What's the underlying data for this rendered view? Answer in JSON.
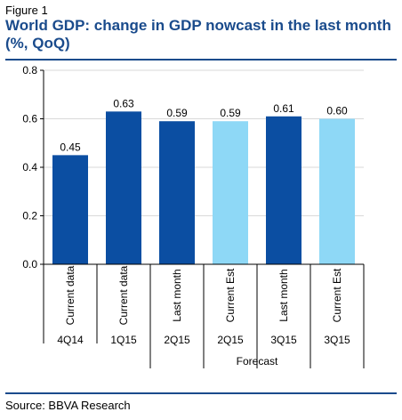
{
  "figure_label": "Figure 1",
  "title": "World GDP: change in GDP nowcast in the last month (%, QoQ)",
  "source": "Source: BBVA Research",
  "colors": {
    "dark": "#0b4ea2",
    "light": "#8ed8f6",
    "title": "#1a4b8c",
    "axis": "#000000",
    "grid": "#d9d9d9"
  },
  "chart_data": {
    "type": "bar",
    "categories": [
      "Current data",
      "Current data",
      "Last month",
      "Current Est",
      "Last month",
      "Current Est"
    ],
    "quarters": [
      "4Q14",
      "1Q15",
      "2Q15",
      "2Q15",
      "3Q15",
      "3Q15"
    ],
    "values": [
      0.45,
      0.63,
      0.59,
      0.59,
      0.61,
      0.6
    ],
    "value_labels": [
      "0.45",
      "0.63",
      "0.59",
      "0.59",
      "0.61",
      "0.60"
    ],
    "bar_colors": [
      "dark",
      "dark",
      "dark",
      "light",
      "dark",
      "light"
    ],
    "ylim": [
      0,
      0.8
    ],
    "yticks": [
      0.0,
      0.2,
      0.4,
      0.6,
      0.8
    ],
    "ytick_labels": [
      "0.0",
      "0.2",
      "0.4",
      "0.6",
      "0.8"
    ],
    "group_label": "Forecast",
    "group_start_index": 2,
    "grid": true
  }
}
